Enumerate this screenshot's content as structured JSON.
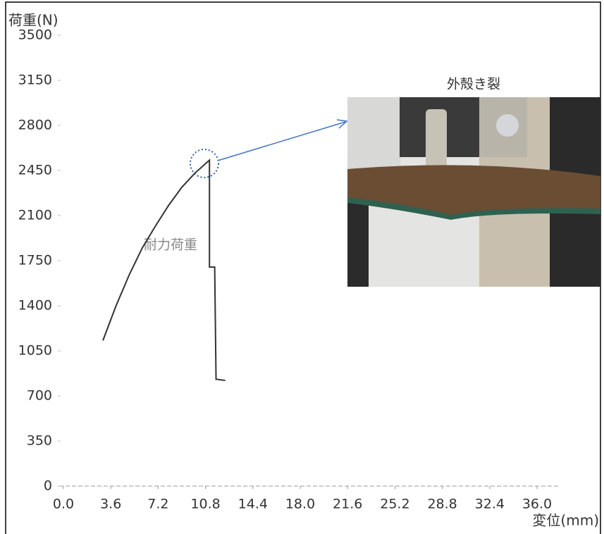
{
  "chart_data": {
    "type": "line",
    "ylabel": "荷重(N)",
    "xlabel": "変位(mm)",
    "annotations": [
      "耐力荷重",
      "外殻き裂"
    ],
    "xlim": [
      0,
      36
    ],
    "ylim": [
      0,
      3500
    ],
    "xticks": [
      {
        "value": 0,
        "label": "0.0"
      },
      3.6,
      7.2,
      10.8,
      14.4,
      {
        "value": 18,
        "label": "18.0"
      },
      21.6,
      25.2,
      28.8,
      32.4,
      {
        "value": 36,
        "label": "36.0"
      }
    ],
    "yticks": [
      0,
      350,
      700,
      1050,
      1400,
      1750,
      2100,
      2450,
      2800,
      3150,
      3500
    ],
    "series": [
      {
        "color": "#333333",
        "x": [
          3.0,
          4.0,
          5.0,
          6.0,
          7.0,
          8.0,
          9.0,
          10.0,
          11.1,
          11.1,
          11.5,
          11.5,
          11.6,
          12.3
        ],
        "values": [
          1130,
          1400,
          1640,
          1850,
          2020,
          2180,
          2320,
          2430,
          2530,
          1700,
          1700,
          1680,
          830,
          820
        ]
      }
    ]
  }
}
